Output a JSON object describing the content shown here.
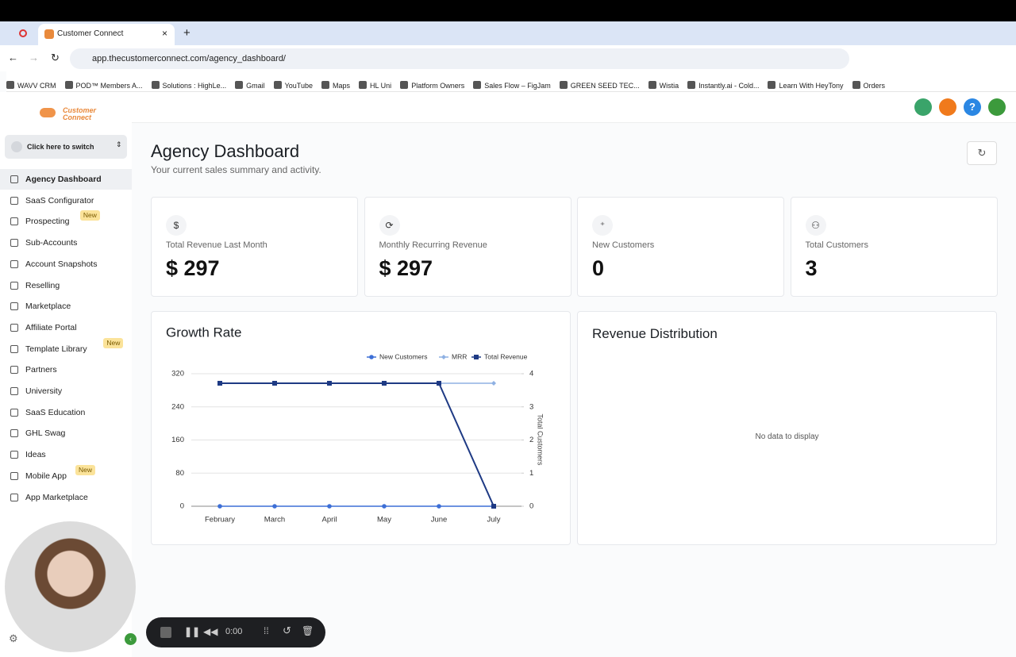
{
  "browser": {
    "tab_title": "Customer Connect",
    "url": "app.thecustomerconnect.com/agency_dashboard/",
    "bookmarks": [
      "WAVV CRM",
      "POD™ Members A...",
      "Solutions : HighLe...",
      "Gmail",
      "YouTube",
      "Maps",
      "HL Uni",
      "Platform Owners",
      "Sales Flow – FigJam",
      "GREEN SEED TEC...",
      "Wistia",
      "Instantly.ai - Cold...",
      "Learn With HeyTony",
      "Orders"
    ]
  },
  "sidebar": {
    "logo": [
      "Customer",
      "Connect"
    ],
    "switcher": "Click here to switch",
    "items": [
      {
        "label": "Agency Dashboard"
      },
      {
        "label": "SaaS Configurator"
      },
      {
        "label": "Prospecting",
        "badge": "New"
      },
      {
        "label": "Sub-Accounts"
      },
      {
        "label": "Account Snapshots"
      },
      {
        "label": "Reselling"
      },
      {
        "label": "Marketplace"
      },
      {
        "label": "Affiliate Portal"
      },
      {
        "label": "Template Library",
        "badge": "New"
      },
      {
        "label": "Partners"
      },
      {
        "label": "University"
      },
      {
        "label": "SaaS Education"
      },
      {
        "label": "GHL Swag"
      },
      {
        "label": "Ideas"
      },
      {
        "label": "Mobile App",
        "badge": "New"
      },
      {
        "label": "App Marketplace"
      }
    ]
  },
  "header": {
    "title": "Agency Dashboard",
    "subtitle": "Your current sales summary and activity."
  },
  "stats": [
    {
      "icon": "$",
      "label": "Total Revenue Last Month",
      "value": "$ 297"
    },
    {
      "label": "Monthly Recurring Revenue",
      "value": "$ 297"
    },
    {
      "label": "New Customers",
      "value": 0
    },
    {
      "label": "Total Customers",
      "value": 3
    }
  ],
  "chart_data": {
    "type": "line",
    "title": "Growth Rate",
    "categories": [
      "February",
      "March",
      "April",
      "May",
      "June",
      "July"
    ],
    "series": [
      {
        "name": "New Customers",
        "color": "#3d6fd6",
        "marker": "circle",
        "axis": "y2",
        "values": [
          0,
          0,
          0,
          0,
          0,
          0
        ]
      },
      {
        "name": "MRR",
        "color": "#8fb1e3",
        "marker": "diamond",
        "values": [
          297,
          297,
          297,
          297,
          297,
          297
        ]
      },
      {
        "name": "Total Revenue",
        "color": "#1e3a84",
        "marker": "square",
        "values": [
          297,
          297,
          297,
          297,
          297,
          0
        ]
      }
    ],
    "ylim": [
      0,
      320
    ],
    "yticks": [
      0,
      80,
      160,
      240,
      320
    ],
    "y2lim": [
      0,
      4
    ],
    "y2ticks": [
      0,
      1,
      2,
      3,
      4
    ],
    "y2label": "Total Customers",
    "grid": true,
    "legend": "top-right"
  },
  "revenue_distribution": {
    "title": "Revenue Distribution",
    "empty": "No data to display"
  },
  "recorder": {
    "time": "0:00"
  }
}
